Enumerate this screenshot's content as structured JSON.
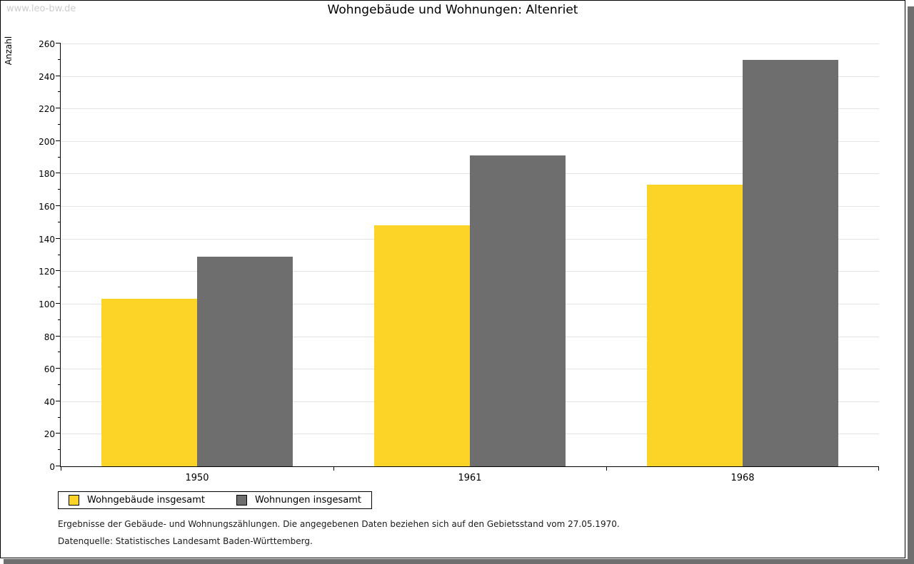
{
  "watermark": "www.leo-bw.de",
  "chart_data": {
    "type": "bar",
    "title": "Wohngebäude und Wohnungen: Altenriet",
    "ylabel": "Anzahl",
    "xlabel": "",
    "categories": [
      "1950",
      "1961",
      "1968"
    ],
    "series": [
      {
        "name": "Wohngebäude insgesamt",
        "color": "#FCD327",
        "values": [
          103,
          148,
          173
        ]
      },
      {
        "name": "Wohnungen insgesamt",
        "color": "#6E6E6E",
        "values": [
          129,
          191,
          250
        ]
      }
    ],
    "ylim": [
      0,
      260
    ],
    "ytick_major": 20,
    "ytick_minor": 10,
    "grid": "horizontal-major-lines",
    "gridline_color": "#E3E3E3",
    "legend_position": "bottom-left"
  },
  "footer": {
    "line1": "Ergebnisse der Gebäude- und Wohnungszählungen. Die angegebenen Daten beziehen sich auf den Gebietsstand vom 27.05.1970.",
    "line2": "Datenquelle: Statistisches Landesamt Baden-Württemberg."
  }
}
